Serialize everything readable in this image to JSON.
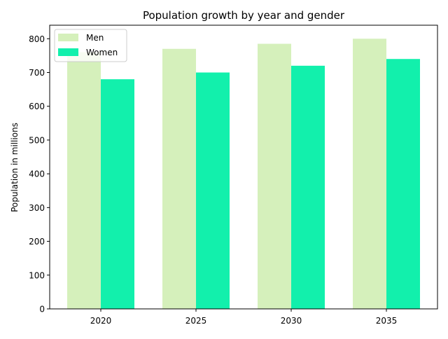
{
  "chart_data": {
    "type": "bar",
    "title": "Population growth by year and gender",
    "xlabel": "",
    "ylabel": "Population in millions",
    "categories": [
      "2020",
      "2025",
      "2030",
      "2035"
    ],
    "series": [
      {
        "name": "Men",
        "color": "#d5f0bb",
        "values": [
          760,
          770,
          785,
          800
        ]
      },
      {
        "name": "Women",
        "color": "#12f0ac",
        "values": [
          680,
          700,
          720,
          740
        ]
      }
    ],
    "ylim": [
      0,
      840
    ],
    "yticks": [
      0,
      100,
      200,
      300,
      400,
      500,
      600,
      700,
      800
    ],
    "grid": false,
    "legend_position": "top-left"
  }
}
